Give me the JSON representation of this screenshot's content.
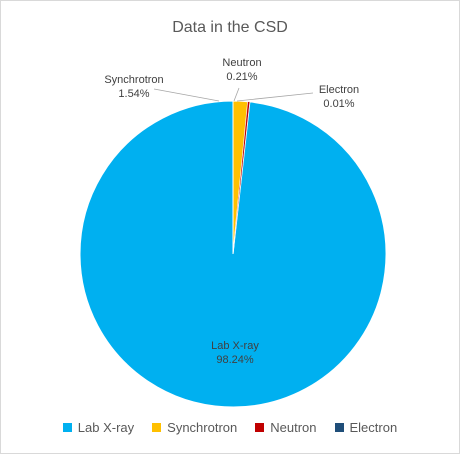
{
  "chart_data": {
    "type": "pie",
    "title": "Data in the CSD",
    "legend_position": "bottom",
    "slices": [
      {
        "name": "Lab X-ray",
        "value": 98.24,
        "label": "98.24%",
        "color": "#00b0f0"
      },
      {
        "name": "Synchrotron",
        "value": 1.54,
        "label": "1.54%",
        "color": "#ffc000"
      },
      {
        "name": "Neutron",
        "value": 0.21,
        "label": "0.21%",
        "color": "#c00000"
      },
      {
        "name": "Electron",
        "value": 0.01,
        "label": "0.01%",
        "color": "#1f4e79"
      }
    ]
  }
}
